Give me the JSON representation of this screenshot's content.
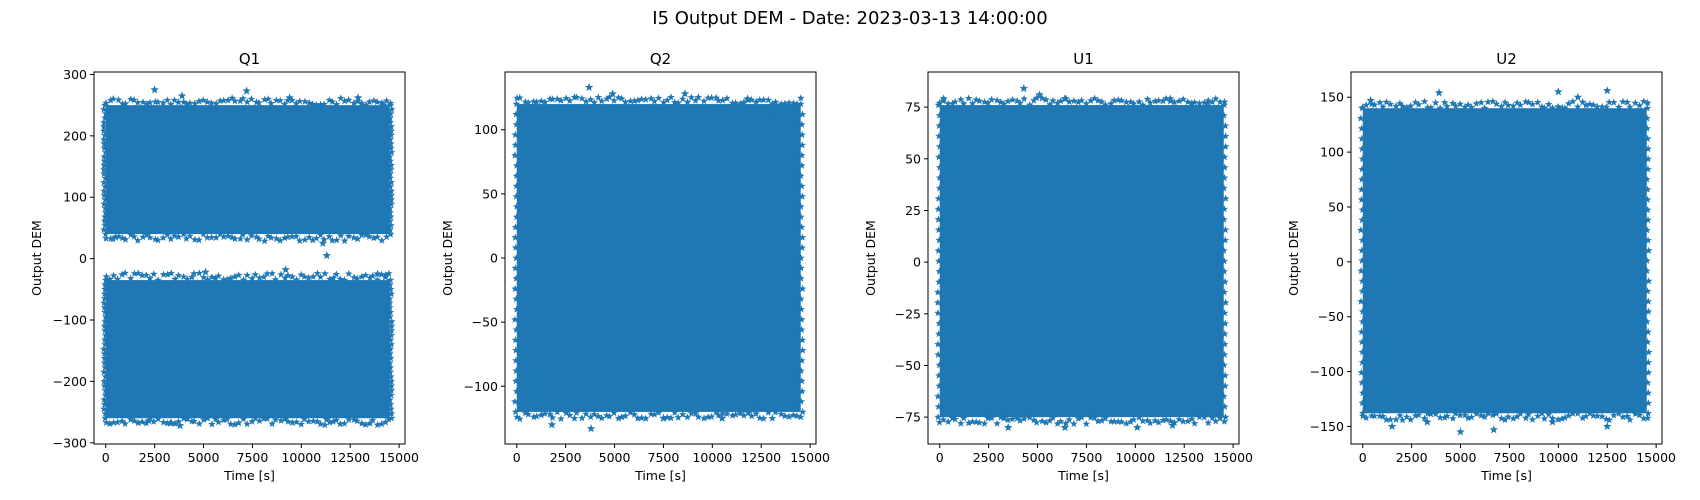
{
  "figure": {
    "suptitle": "I5 Output DEM - Date: 2023-03-13 14:00:00",
    "marker_color": "#1f77b4"
  },
  "chart_data": [
    {
      "type": "scatter",
      "title": "Q1",
      "xlabel": "Time [s]",
      "ylabel": "Output DEM",
      "marker": "star",
      "xlim": [
        -600,
        15300
      ],
      "ylim": [
        -302,
        304
      ],
      "xticks": [
        0,
        2500,
        5000,
        7500,
        10000,
        12500,
        15000
      ],
      "yticks": [
        -300,
        -200,
        -100,
        0,
        100,
        200,
        300
      ],
      "x_range": [
        0,
        14520
      ],
      "bands": [
        {
          "name": "upper",
          "core": [
            40,
            250
          ],
          "outliers": [
            [
              2500,
              275
            ],
            [
              7200,
              273
            ],
            [
              11300,
              5
            ],
            [
              11100,
              25
            ],
            [
              3900,
              265
            ],
            [
              9400,
              262
            ],
            [
              12900,
              262
            ],
            [
              500,
              35
            ],
            [
              14200,
              250
            ]
          ]
        },
        {
          "name": "lower",
          "core": [
            -260,
            -35
          ],
          "outliers": [
            [
              3800,
              -272
            ],
            [
              3300,
              -268
            ],
            [
              2200,
              -264
            ],
            [
              5100,
              -22
            ],
            [
              9200,
              -18
            ],
            [
              13900,
              -25
            ],
            [
              11300,
              -262
            ],
            [
              4700,
              -40
            ],
            [
              14300,
              -30
            ]
          ]
        }
      ]
    },
    {
      "type": "scatter",
      "title": "Q2",
      "xlabel": "Time [s]",
      "ylabel": "Output DEM",
      "marker": "star",
      "xlim": [
        -600,
        15300
      ],
      "ylim": [
        -145,
        145
      ],
      "xticks": [
        0,
        2500,
        5000,
        7500,
        10000,
        12500,
        15000
      ],
      "yticks": [
        -100,
        -50,
        0,
        50,
        100
      ],
      "x_range": [
        0,
        14520
      ],
      "bands": [
        {
          "name": "main",
          "core": [
            -120,
            120
          ],
          "outliers": [
            [
              3700,
              133
            ],
            [
              4900,
              128
            ],
            [
              8600,
              128
            ],
            [
              11800,
              124
            ],
            [
              3800,
              -133
            ],
            [
              1800,
              -130
            ],
            [
              7500,
              -125
            ],
            [
              10500,
              -125
            ],
            [
              12200,
              -118
            ],
            [
              13000,
              113
            ]
          ]
        }
      ]
    },
    {
      "type": "scatter",
      "title": "U1",
      "xlabel": "Time [s]",
      "ylabel": "Output DEM",
      "marker": "star",
      "xlim": [
        -600,
        15300
      ],
      "ylim": [
        -88,
        92
      ],
      "xticks": [
        0,
        2500,
        5000,
        7500,
        10000,
        12500,
        15000
      ],
      "yticks": [
        -75,
        -50,
        -25,
        0,
        25,
        50,
        75
      ],
      "x_range": [
        0,
        14520
      ],
      "bands": [
        {
          "name": "main",
          "core": [
            -75,
            76
          ],
          "outliers": [
            [
              4300,
              84
            ],
            [
              5100,
              81
            ],
            [
              6400,
              79
            ],
            [
              11800,
              78
            ],
            [
              13700,
              77
            ],
            [
              3500,
              -80
            ],
            [
              6400,
              -80
            ],
            [
              10100,
              -80
            ],
            [
              11900,
              -79
            ],
            [
              200,
              79
            ]
          ]
        }
      ]
    },
    {
      "type": "scatter",
      "title": "U2",
      "xlabel": "Time [s]",
      "ylabel": "Output DEM",
      "marker": "star",
      "xlim": [
        -600,
        15300
      ],
      "ylim": [
        -166,
        173
      ],
      "xticks": [
        0,
        2500,
        5000,
        7500,
        10000,
        12500,
        15000
      ],
      "yticks": [
        -150,
        -100,
        -50,
        0,
        50,
        100,
        150
      ],
      "x_range": [
        0,
        14520
      ],
      "bands": [
        {
          "name": "main",
          "core": [
            -138,
            140
          ],
          "outliers": [
            [
              3900,
              154
            ],
            [
              10000,
              155
            ],
            [
              12500,
              156
            ],
            [
              11000,
              150
            ],
            [
              5000,
              -155
            ],
            [
              6700,
              -153
            ],
            [
              12500,
              -150
            ],
            [
              1500,
              -150
            ],
            [
              3300,
              -146
            ],
            [
              9700,
              -146
            ],
            [
              400,
              147
            ]
          ]
        }
      ]
    }
  ]
}
